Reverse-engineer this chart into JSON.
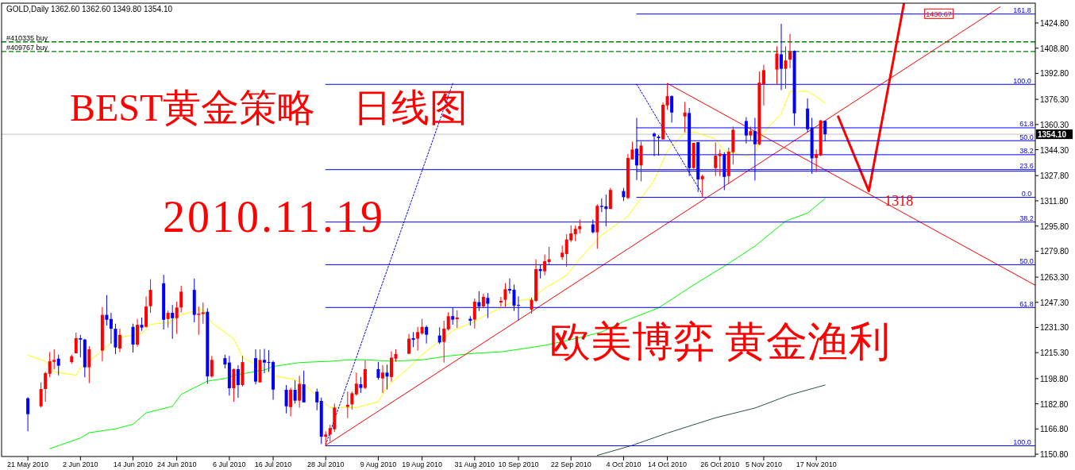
{
  "chart_data": {
    "type": "candlestick",
    "title": "GOLD,Daily  1362.60 1362.60 1349.80 1354.10",
    "xlim": [
      "2010-05-15",
      "2011-01-06"
    ],
    "ylim": [
      1149.3,
      1437.4
    ],
    "xticks": [
      {
        "value": "2010-05-21",
        "label": "21 May 2010"
      },
      {
        "value": "2010-06-02",
        "label": "2 Jun 2010"
      },
      {
        "value": "2010-06-14",
        "label": "14 Jun 2010"
      },
      {
        "value": "2010-06-24",
        "label": "24 Jun 2010"
      },
      {
        "value": "2010-07-06",
        "label": "6 Jul 2010"
      },
      {
        "value": "2010-07-16",
        "label": "16 Jul 2010"
      },
      {
        "value": "2010-07-28",
        "label": "28 Jul 2010"
      },
      {
        "value": "2010-08-09",
        "label": "9 Aug 2010"
      },
      {
        "value": "2010-08-19",
        "label": "19 Aug 2010"
      },
      {
        "value": "2010-08-31",
        "label": "31 Aug 2010"
      },
      {
        "value": "2010-09-10",
        "label": "10 Sep 2010"
      },
      {
        "value": "2010-09-22",
        "label": "22 Sep 2010"
      },
      {
        "value": "2010-10-04",
        "label": "4 Oct 2010"
      },
      {
        "value": "2010-10-14",
        "label": "14 Oct 2010"
      },
      {
        "value": "2010-10-26",
        "label": "26 Oct 2010"
      },
      {
        "value": "2010-11-05",
        "label": "5 Nov 2010"
      },
      {
        "value": "2010-11-17",
        "label": "17 Nov 2010"
      }
    ],
    "yticks": [
      {
        "value": 1424.8,
        "label": "1424.80"
      },
      {
        "value": 1408.8,
        "label": "1408.80"
      },
      {
        "value": 1392.8,
        "label": "1392.80"
      },
      {
        "value": 1376.3,
        "label": "1376.30"
      },
      {
        "value": 1360.3,
        "label": "1360.30"
      },
      {
        "value": 1344.3,
        "label": "1344.30"
      },
      {
        "value": 1327.8,
        "label": "1327.80"
      },
      {
        "value": 1311.8,
        "label": "1311.80"
      },
      {
        "value": 1295.8,
        "label": "1295.80"
      },
      {
        "value": 1279.8,
        "label": "1279.80"
      },
      {
        "value": 1263.3,
        "label": "1263.30"
      },
      {
        "value": 1247.3,
        "label": "1247.30"
      },
      {
        "value": 1231.3,
        "label": "1231.30"
      },
      {
        "value": 1215.3,
        "label": "1215.30"
      },
      {
        "value": 1198.8,
        "label": "1198.80"
      },
      {
        "value": 1182.8,
        "label": "1182.80"
      },
      {
        "value": 1166.8,
        "label": "1166.80"
      },
      {
        "value": 1150.8,
        "label": "1150.80"
      }
    ],
    "x": [
      "2010-05-21",
      "2010-05-24",
      "2010-05-25",
      "2010-05-26",
      "2010-05-27",
      "2010-05-28",
      "2010-05-31",
      "2010-06-01",
      "2010-06-02",
      "2010-06-03",
      "2010-06-04",
      "2010-06-07",
      "2010-06-08",
      "2010-06-09",
      "2010-06-10",
      "2010-06-11",
      "2010-06-14",
      "2010-06-15",
      "2010-06-16",
      "2010-06-17",
      "2010-06-18",
      "2010-06-21",
      "2010-06-22",
      "2010-06-23",
      "2010-06-24",
      "2010-06-25",
      "2010-06-28",
      "2010-06-29",
      "2010-06-30",
      "2010-07-01",
      "2010-07-02",
      "2010-07-05",
      "2010-07-06",
      "2010-07-07",
      "2010-07-08",
      "2010-07-09",
      "2010-07-12",
      "2010-07-13",
      "2010-07-14",
      "2010-07-15",
      "2010-07-16",
      "2010-07-19",
      "2010-07-20",
      "2010-07-21",
      "2010-07-22",
      "2010-07-23",
      "2010-07-26",
      "2010-07-27",
      "2010-07-28",
      "2010-07-29",
      "2010-07-30",
      "2010-08-02",
      "2010-08-03",
      "2010-08-04",
      "2010-08-05",
      "2010-08-06",
      "2010-08-09",
      "2010-08-10",
      "2010-08-11",
      "2010-08-12",
      "2010-08-13",
      "2010-08-16",
      "2010-08-17",
      "2010-08-18",
      "2010-08-19",
      "2010-08-20",
      "2010-08-23",
      "2010-08-24",
      "2010-08-25",
      "2010-08-26",
      "2010-08-27",
      "2010-08-30",
      "2010-08-31",
      "2010-09-01",
      "2010-09-02",
      "2010-09-03",
      "2010-09-06",
      "2010-09-07",
      "2010-09-08",
      "2010-09-09",
      "2010-09-10",
      "2010-09-13",
      "2010-09-14",
      "2010-09-15",
      "2010-09-16",
      "2010-09-17",
      "2010-09-20",
      "2010-09-21",
      "2010-09-22",
      "2010-09-23",
      "2010-09-24",
      "2010-09-27",
      "2010-09-28",
      "2010-09-29",
      "2010-09-30",
      "2010-10-01",
      "2010-10-04",
      "2010-10-05",
      "2010-10-06",
      "2010-10-07",
      "2010-10-08",
      "2010-10-11",
      "2010-10-12",
      "2010-10-13",
      "2010-10-14",
      "2010-10-15",
      "2010-10-18",
      "2010-10-19",
      "2010-10-20",
      "2010-10-21",
      "2010-10-22",
      "2010-10-25",
      "2010-10-26",
      "2010-10-27",
      "2010-10-28",
      "2010-10-29",
      "2010-11-01",
      "2010-11-02",
      "2010-11-03",
      "2010-11-04",
      "2010-11-05",
      "2010-11-08",
      "2010-11-09",
      "2010-11-10",
      "2010-11-11",
      "2010-11-12",
      "2010-11-15",
      "2010-11-16",
      "2010-11-17",
      "2010-11-18",
      "2010-11-19"
    ],
    "ohlc": [
      [
        1186.3,
        1187.0,
        1165.3,
        1176.2
      ],
      [
        1181.2,
        1196.4,
        1180.4,
        1192.2
      ],
      [
        1192.2,
        1203.1,
        1184.1,
        1202.3
      ],
      [
        1201.9,
        1215.7,
        1199.7,
        1209.8
      ],
      [
        1209.5,
        1217.4,
        1204.8,
        1210.7
      ],
      [
        1211.5,
        1214.0,
        1200.9,
        1207.0
      ],
      [
        1209.3,
        1214.0,
        1208.3,
        1213.0
      ],
      [
        1214.9,
        1228.0,
        1214.9,
        1224.5
      ],
      [
        1224.5,
        1226.6,
        1212.3,
        1223.6
      ],
      [
        1223.6,
        1224.1,
        1199.7,
        1206.0
      ],
      [
        1206.0,
        1219.4,
        1195.9,
        1217.4
      ],
      [
        1216.6,
        1244.3,
        1209.8,
        1239.3
      ],
      [
        1239.3,
        1251.9,
        1232.5,
        1236.2
      ],
      [
        1236.7,
        1240.6,
        1221.1,
        1230.5
      ],
      [
        1230.5,
        1233.7,
        1214.4,
        1218.6
      ],
      [
        1217.9,
        1230.5,
        1215.7,
        1226.6
      ],
      [
        1231.7,
        1233.7,
        1215.4,
        1220.4
      ],
      [
        1220.4,
        1236.7,
        1219.1,
        1233.0
      ],
      [
        1233.0,
        1237.6,
        1229.2,
        1231.2
      ],
      [
        1231.7,
        1251.0,
        1231.2,
        1244.6
      ],
      [
        1244.8,
        1262.0,
        1240.6,
        1255.2
      ],
      [
        1259.4,
        1264.8,
        1230.0,
        1236.2
      ],
      [
        1236.7,
        1242.1,
        1231.2,
        1240.6
      ],
      [
        1240.6,
        1245.6,
        1224.1,
        1237.2
      ],
      [
        1237.2,
        1247.7,
        1227.2,
        1244.0
      ],
      [
        1244.0,
        1257.8,
        1240.9,
        1254.1
      ],
      [
        1255.2,
        1262.3,
        1234.6,
        1239.3
      ],
      [
        1239.3,
        1244.6,
        1226.6,
        1240.1
      ],
      [
        1239.9,
        1247.2,
        1233.7,
        1240.9
      ],
      [
        1241.3,
        1243.5,
        1195.5,
        1200.2
      ],
      [
        1200.2,
        1213.2,
        1199.4,
        1210.7
      ],
      [
        1211.8,
        1214.0,
        1205.3,
        1207.8
      ],
      [
        1209.0,
        1213.2,
        1188.0,
        1192.7
      ],
      [
        1192.7,
        1205.3,
        1184.1,
        1204.8
      ],
      [
        1204.8,
        1207.3,
        1186.6,
        1194.7
      ],
      [
        1194.7,
        1213.2,
        1193.8,
        1209.3
      ],
      [
        1211.8,
        1217.4,
        1195.2,
        1196.9
      ],
      [
        1196.4,
        1217.4,
        1196.4,
        1210.7
      ],
      [
        1210.7,
        1217.7,
        1202.3,
        1209.0
      ],
      [
        1209.3,
        1216.9,
        1203.1,
        1209.0
      ],
      [
        1209.3,
        1210.2,
        1185.4,
        1191.8
      ],
      [
        1191.7,
        1194.7,
        1176.7,
        1181.2
      ],
      [
        1180.7,
        1193.0,
        1174.8,
        1191.7
      ],
      [
        1191.7,
        1197.7,
        1182.9,
        1184.8
      ],
      [
        1184.8,
        1200.6,
        1180.4,
        1195.5
      ],
      [
        1195.2,
        1203.9,
        1183.7,
        1183.7
      ],
      [
        1190.5,
        1192.5,
        1178.7,
        1183.7
      ],
      [
        1184.6,
        1186.8,
        1157.2,
        1161.9
      ],
      [
        1161.9,
        1165.3,
        1156.4,
        1163.3
      ],
      [
        1163.3,
        1169.5,
        1158.9,
        1167.3
      ],
      [
        1166.6,
        1182.9,
        1164.9,
        1180.4
      ],
      [
        1180.8,
        1190.5,
        1173.7,
        1182.1
      ],
      [
        1182.4,
        1190.5,
        1179.1,
        1189.5
      ],
      [
        1188.8,
        1202.6,
        1188.0,
        1195.6
      ],
      [
        1195.2,
        1199.8,
        1189.7,
        1192.9
      ],
      [
        1192.9,
        1210.4,
        1192.2,
        1204.8
      ],
      [
        1204.8,
        1209.4,
        1198.1,
        1199.3
      ],
      [
        1198.9,
        1207.3,
        1189.7,
        1202.6
      ],
      [
        1202.6,
        1207.7,
        1191.9,
        1200.1
      ],
      [
        1199.8,
        1216.1,
        1196.9,
        1212.1
      ],
      [
        1211.5,
        1217.4,
        1209.5,
        1214.4
      ],
      [
        1214.6,
        1227.2,
        1214.4,
        1224.2
      ],
      [
        1224.5,
        1228.4,
        1218.8,
        1223.5
      ],
      [
        1224.2,
        1231.7,
        1216.6,
        1228.4
      ],
      [
        1227.5,
        1236.8,
        1226.7,
        1231.7
      ],
      [
        1231.6,
        1232.6,
        1221.1,
        1226.7
      ],
      [
        1226.2,
        1231.4,
        1220.8,
        1221.8
      ],
      [
        1222.1,
        1235.6,
        1209.0,
        1230.6
      ],
      [
        1230.1,
        1241.0,
        1229.2,
        1238.5
      ],
      [
        1238.5,
        1243.8,
        1233.1,
        1236.3
      ],
      [
        1236.6,
        1242.2,
        1230.9,
        1237.6
      ],
      [
        1236.8,
        1238.5,
        1232.6,
        1235.6
      ],
      [
        1236.3,
        1249.7,
        1230.6,
        1247.7
      ],
      [
        1247.4,
        1254.4,
        1241.7,
        1244.7
      ],
      [
        1244.7,
        1252.8,
        1244.0,
        1250.7
      ],
      [
        1250.1,
        1253.1,
        1237.3,
        1246.4
      ],
      [
        1247.2,
        1250.7,
        1244.7,
        1248.2
      ],
      [
        1248.9,
        1259.5,
        1244.3,
        1255.6
      ],
      [
        1255.8,
        1262.5,
        1252.8,
        1254.8
      ],
      [
        1255.3,
        1258.6,
        1241.8,
        1245.2
      ],
      [
        1245.7,
        1251.1,
        1235.9,
        1245.2
      ],
      [
        1242.7,
        1250.2,
        1240.1,
        1248.9
      ],
      [
        1248.2,
        1274.6,
        1247.4,
        1268.4
      ],
      [
        1268.4,
        1270.9,
        1262.5,
        1267.2
      ],
      [
        1267.0,
        1277.7,
        1264.5,
        1273.4
      ],
      [
        1272.9,
        1282.5,
        1271.3,
        1274.6
      ],
      [
        1276.0,
        1283.4,
        1274.3,
        1278.8
      ],
      [
        1278.0,
        1290.6,
        1269.9,
        1287.2
      ],
      [
        1286.7,
        1296.2,
        1285.6,
        1291.1
      ],
      [
        1290.6,
        1296.2,
        1286.1,
        1294.0
      ],
      [
        1293.8,
        1299.9,
        1291.1,
        1295.6
      ],
      [
        1296.8,
        1299.9,
        1291.1,
        1291.8
      ],
      [
        1291.8,
        1309.6,
        1281.4,
        1308.6
      ],
      [
        1308.6,
        1313.3,
        1304.6,
        1307.9
      ],
      [
        1308.3,
        1315.8,
        1295.6,
        1306.6
      ],
      [
        1306.6,
        1320.0,
        1306.6,
        1318.7
      ],
      [
        1318.0,
        1320.0,
        1311.6,
        1314.1
      ],
      [
        1313.6,
        1341.5,
        1312.9,
        1339.0
      ],
      [
        1338.1,
        1349.4,
        1338.1,
        1344.4
      ],
      [
        1344.9,
        1364.5,
        1325.0,
        1334.3
      ],
      [
        1334.3,
        1349.4,
        1324.2,
        1346.9
      ],
      [
        1354.5,
        1355.3,
        1340.2,
        1352.8
      ],
      [
        1352.6,
        1353.6,
        1340.5,
        1351.6
      ],
      [
        1350.9,
        1374.3,
        1350.6,
        1372.8
      ],
      [
        1372.4,
        1386.4,
        1369.6,
        1378.3
      ],
      [
        1378.3,
        1378.8,
        1361.5,
        1367.9
      ],
      [
        1365.4,
        1374.6,
        1355.3,
        1367.9
      ],
      [
        1367.6,
        1370.8,
        1327.5,
        1332.6
      ],
      [
        1332.6,
        1348.6,
        1332.1,
        1348.6
      ],
      [
        1349.1,
        1349.1,
        1317.4,
        1325.4
      ],
      [
        1325.5,
        1328.4,
        1314.1,
        1327.5
      ],
      [
        1332.6,
        1348.9,
        1327.5,
        1340.5
      ],
      [
        1340.2,
        1344.4,
        1327.5,
        1341.8
      ],
      [
        1341.5,
        1342.7,
        1318.6,
        1327.0
      ],
      [
        1327.5,
        1345.5,
        1322.5,
        1343.0
      ],
      [
        1342.7,
        1359.0,
        1334.8,
        1357.0
      ],
      [
        1362.5,
        1365.0,
        1348.2,
        1353.3
      ],
      [
        1353.3,
        1359.0,
        1350.2,
        1356.1
      ],
      [
        1356.1,
        1364.5,
        1324.7,
        1347.7
      ],
      [
        1347.7,
        1394.0,
        1347.2,
        1386.9
      ],
      [
        1385.9,
        1398.2,
        1372.4,
        1394.8
      ],
      [
        1395.2,
        1410.0,
        1385.9,
        1405.4
      ],
      [
        1404.9,
        1424.3,
        1382.2,
        1395.7
      ],
      [
        1395.7,
        1410.0,
        1383.0,
        1401.0
      ],
      [
        1401.5,
        1417.9,
        1396.0,
        1406.6
      ],
      [
        1407.1,
        1407.4,
        1359.5,
        1367.4
      ],
      [
        1370.4,
        1376.8,
        1355.3,
        1357.3
      ],
      [
        1358.3,
        1364.5,
        1328.9,
        1338.8
      ],
      [
        1339.0,
        1344.4,
        1330.1,
        1341.5
      ],
      [
        1340.7,
        1363.2,
        1340.2,
        1362.9
      ],
      [
        1362.6,
        1362.6,
        1349.8,
        1354.1
      ]
    ],
    "colors": [
      "#0000ff",
      "#ff0000",
      "#ff0000",
      "#ff0000",
      "#ff0000",
      "#0000ff",
      "#ff0000",
      "#ff0000",
      "#0000ff",
      "#0000ff",
      "#ff0000",
      "#ff0000",
      "#0000ff",
      "#0000ff",
      "#0000ff",
      "#ff0000",
      "#0000ff",
      "#ff0000",
      "#0000ff",
      "#ff0000",
      "#ff0000",
      "#0000ff",
      "#ff0000",
      "#0000ff",
      "#ff0000",
      "#ff0000",
      "#0000ff",
      "#ff0000",
      "#ff0000",
      "#0000ff",
      "#ff0000",
      "#0000ff",
      "#0000ff",
      "#ff0000",
      "#0000ff",
      "#ff0000",
      "#0000ff",
      "#ff0000",
      "#0000ff",
      "#0000ff",
      "#0000ff",
      "#0000ff",
      "#ff0000",
      "#0000ff",
      "#ff0000",
      "#0000ff",
      "#0000ff",
      "#0000ff",
      "#ff0000",
      "#ff0000",
      "#ff0000",
      "#ff0000",
      "#ff0000",
      "#ff0000",
      "#0000ff",
      "#ff0000",
      "#0000ff",
      "#ff0000",
      "#0000ff",
      "#ff0000",
      "#ff0000",
      "#ff0000",
      "#0000ff",
      "#ff0000",
      "#ff0000",
      "#0000ff",
      "#0000ff",
      "#ff0000",
      "#ff0000",
      "#0000ff",
      "#ff0000",
      "#0000ff",
      "#ff0000",
      "#0000ff",
      "#ff0000",
      "#0000ff",
      "#ff0000",
      "#ff0000",
      "#0000ff",
      "#0000ff",
      "#0000ff",
      "#ff0000",
      "#ff0000",
      "#0000ff",
      "#ff0000",
      "#ff0000",
      "#ff0000",
      "#ff0000",
      "#ff0000",
      "#ff0000",
      "#ff0000",
      "#0000ff",
      "#ff0000",
      "#0000ff",
      "#0000ff",
      "#ff0000",
      "#0000ff",
      "#ff0000",
      "#ff0000",
      "#0000ff",
      "#ff0000",
      "#0000ff",
      "#0000ff",
      "#ff0000",
      "#ff0000",
      "#0000ff",
      "#ff0000",
      "#0000ff",
      "#ff0000",
      "#0000ff",
      "#ff0000",
      "#ff0000",
      "#ff0000",
      "#0000ff",
      "#ff0000",
      "#ff0000",
      "#0000ff",
      "#ff0000",
      "#0000ff",
      "#ff0000",
      "#ff0000",
      "#ff0000",
      "#0000ff",
      "#ff0000",
      "#ff0000",
      "#0000ff",
      "#0000ff",
      "#0000ff",
      "#ff0000",
      "#ff0000",
      "#0000ff"
    ],
    "series": [
      {
        "type": "line",
        "color": "#ffff00",
        "x": [
          "2010-05-21",
          "2010-05-25",
          "2010-05-27",
          "2010-06-01",
          "2010-06-02",
          "2010-06-07",
          "2010-06-09",
          "2010-06-11",
          "2010-06-16",
          "2010-06-18",
          "2010-06-22",
          "2010-06-25",
          "2010-06-29",
          "2010-06-30",
          "2010-07-02",
          "2010-07-07",
          "2010-07-09",
          "2010-07-14",
          "2010-07-16",
          "2010-07-21",
          "2010-07-23",
          "2010-07-27",
          "2010-07-29",
          "2010-08-04",
          "2010-08-09",
          "2010-08-11",
          "2010-08-16",
          "2010-08-19",
          "2010-08-23",
          "2010-08-26",
          "2010-08-31",
          "2010-09-02",
          "2010-09-07",
          "2010-09-09",
          "2010-09-13",
          "2010-09-16",
          "2010-09-21",
          "2010-09-24",
          "2010-09-29",
          "2010-10-05",
          "2010-10-11",
          "2010-10-14",
          "2010-10-18",
          "2010-10-20",
          "2010-10-25",
          "2010-10-27",
          "2010-11-01",
          "2010-11-03",
          "2010-11-05",
          "2010-11-09",
          "2010-11-11",
          "2010-11-15",
          "2010-11-17",
          "2010-11-19"
        ],
        "values": [
          1213.7,
          1209.8,
          1203.1,
          1200.9,
          1205.6,
          1216.6,
          1221.6,
          1225.0,
          1227.5,
          1233.4,
          1234.2,
          1239.3,
          1242.6,
          1242.6,
          1234.2,
          1224.1,
          1212.3,
          1204.8,
          1200.6,
          1198.1,
          1195.2,
          1185.4,
          1180.4,
          1180.4,
          1184.1,
          1193.9,
          1205.7,
          1214.1,
          1222.5,
          1229.2,
          1235.1,
          1238.5,
          1245.2,
          1248.0,
          1249.4,
          1256.1,
          1264.5,
          1275.0,
          1290.0,
          1302.0,
          1325.0,
          1343.5,
          1355.3,
          1355.6,
          1351.1,
          1343.5,
          1340.2,
          1342.2,
          1355.3,
          1367.1,
          1381.4,
          1381.4,
          1378.0,
          1373.8
        ]
      },
      {
        "type": "line",
        "color": "#00ff00",
        "x": [
          "2010-05-26",
          "2010-06-02",
          "2010-06-04",
          "2010-06-10",
          "2010-06-14",
          "2010-06-17",
          "2010-06-23",
          "2010-06-25",
          "2010-07-01",
          "2010-07-05",
          "2010-07-08",
          "2010-07-14",
          "2010-07-16",
          "2010-07-22",
          "2010-07-26",
          "2010-07-29",
          "2010-08-02",
          "2010-08-06",
          "2010-08-12",
          "2010-08-19",
          "2010-08-25",
          "2010-08-31",
          "2010-09-06",
          "2010-09-10",
          "2010-09-16",
          "2010-09-23",
          "2010-09-29",
          "2010-10-04",
          "2010-10-12",
          "2010-10-20",
          "2010-10-28",
          "2010-11-03",
          "2010-11-10",
          "2010-11-15",
          "2010-11-19"
        ],
        "values": [
          1154.3,
          1161.0,
          1164.4,
          1166.9,
          1169.8,
          1177.0,
          1181.2,
          1188.8,
          1197.2,
          1198.9,
          1201.4,
          1204.3,
          1206.5,
          1209.0,
          1209.5,
          1209.8,
          1210.7,
          1210.7,
          1209.9,
          1210.7,
          1213.2,
          1214.9,
          1215.8,
          1217.4,
          1219.9,
          1224.2,
          1228.4,
          1235.1,
          1243.8,
          1258.3,
          1272.0,
          1283.0,
          1298.9,
          1304.0,
          1313.2
        ]
      },
      {
        "type": "line",
        "color": "#2f4f4f",
        "x": [
          "2010-09-28",
          "2010-10-06",
          "2010-10-14",
          "2010-10-25",
          "2010-11-03",
          "2010-11-11",
          "2010-11-19"
        ],
        "values": [
          1150.0,
          1156.4,
          1164.2,
          1173.9,
          1180.1,
          1188.5,
          1194.7
        ]
      },
      {
        "type": "line",
        "color": "#ff0000",
        "x": [
          "2010-07-28",
          "2010-12-29"
        ],
        "values": [
          1156.4,
          1435.1
        ]
      },
      {
        "type": "line",
        "color": "#ff0000",
        "x": [
          "2010-10-14",
          "2011-01-06"
        ],
        "values": [
          1386.4,
          1258.1
        ]
      },
      {
        "type": "line",
        "color": "#0000ff",
        "line_style": "dotted",
        "x": [
          "2010-07-28",
          "2010-08-26"
        ],
        "values": [
          1156.9,
          1386.4
        ]
      },
      {
        "type": "line",
        "color": "#0000ff",
        "line_style": "dotted",
        "x": [
          "2010-10-07",
          "2010-10-22"
        ],
        "values": [
          1385.9,
          1315.8
        ]
      },
      {
        "type": "line",
        "color": "#ff0000",
        "x": [
          "2010-11-22",
          "2010-11-29",
          "2010-12-07"
        ],
        "values": [
          1365.3,
          1318,
          1437.0
        ]
      },
      {
        "type": "line",
        "color": "#0000ff",
        "x": [
          "2010-07-28",
          "2011-01-06"
        ],
        "values": [
          1156.1,
          1156.1
        ]
      },
      {
        "type": "line",
        "color": "#0000ff",
        "x": [
          "2010-07-28",
          "2011-01-06"
        ],
        "values": [
          1244.0,
          1244.0
        ]
      },
      {
        "type": "line",
        "color": "#0000ff",
        "x": [
          "2010-07-28",
          "2011-01-06"
        ],
        "values": [
          1271.2,
          1271.2
        ]
      },
      {
        "type": "line",
        "color": "#0000ff",
        "x": [
          "2010-07-28",
          "2011-01-06"
        ],
        "values": [
          1298.3,
          1298.3
        ]
      },
      {
        "type": "line",
        "color": "#0000ff",
        "x": [
          "2010-07-28",
          "2011-01-06"
        ],
        "values": [
          1331.6,
          1331.6
        ]
      },
      {
        "type": "line",
        "color": "#0000ff",
        "x": [
          "2010-07-28",
          "2011-01-06"
        ],
        "values": [
          1385.8,
          1385.8
        ]
      },
      {
        "type": "line",
        "color": "#0000ff",
        "x": [
          "2010-10-07",
          "2011-01-06"
        ],
        "values": [
          1430.5,
          1430.5
        ]
      },
      {
        "type": "line",
        "color": "#0000ff",
        "x": [
          "2010-10-07",
          "2011-01-06"
        ],
        "values": [
          1358.2,
          1358.2
        ]
      },
      {
        "type": "line",
        "color": "#0000ff",
        "x": [
          "2010-10-07",
          "2011-01-06"
        ],
        "values": [
          1350.0,
          1350.0
        ]
      },
      {
        "type": "line",
        "color": "#0000ff",
        "x": [
          "2010-10-07",
          "2011-01-06"
        ],
        "values": [
          1341.1,
          1341.1
        ]
      },
      {
        "type": "line",
        "color": "#0000ff",
        "x": [
          "2010-10-07",
          "2011-01-06"
        ],
        "values": [
          1330.6,
          1330.6
        ]
      },
      {
        "type": "line",
        "color": "#0000ff",
        "x": [
          "2010-10-07",
          "2011-01-06"
        ],
        "values": [
          1314.0,
          1314.0
        ]
      }
    ],
    "ref_lines": [
      {
        "axis": "y",
        "value": 1412.8,
        "label": "#410335 buy",
        "color": "#008000",
        "line_style": "dashed"
      },
      {
        "axis": "y",
        "value": 1406.7,
        "label": "#409767 buy",
        "color": "#008000",
        "line_style": "dashed"
      },
      {
        "axis": "y",
        "value": 1354.1,
        "label": "1354.10",
        "color": "#c0c0c0"
      }
    ],
    "annotations": [
      "BEST黄金策略　日线图",
      "2010.11.19",
      "欧美博弈 黄金渔利",
      {
        "text": "1318",
        "x": "2010-11-29",
        "y": 1318
      },
      {
        "text": "1430.67",
        "x": "2010-12-15",
        "y": 1430.67
      },
      {
        "text": "100.0",
        "x": "2011-01-03",
        "y": 1156.1
      },
      {
        "text": "61.8",
        "x": "2011-01-04",
        "y": 1244.0
      },
      {
        "text": "50.0",
        "x": "2011-01-04",
        "y": 1271.2
      },
      {
        "text": "38.2",
        "x": "2011-01-04",
        "y": 1298.3
      },
      {
        "text": "23.6",
        "x": "2011-01-04",
        "y": 1331.6
      },
      {
        "text": "100.0",
        "x": "2011-01-03",
        "y": 1385.8
      },
      {
        "text": "161.8",
        "x": "2011-01-03",
        "y": 1430.5
      },
      {
        "text": "61.8",
        "x": "2011-01-04",
        "y": 1358.2
      },
      {
        "text": "50.0",
        "x": "2011-01-04",
        "y": 1350.0
      },
      {
        "text": "38.2",
        "x": "2011-01-04",
        "y": 1341.1
      },
      {
        "text": "0.0",
        "x": "2011-01-04",
        "y": 1314.0
      }
    ]
  }
}
